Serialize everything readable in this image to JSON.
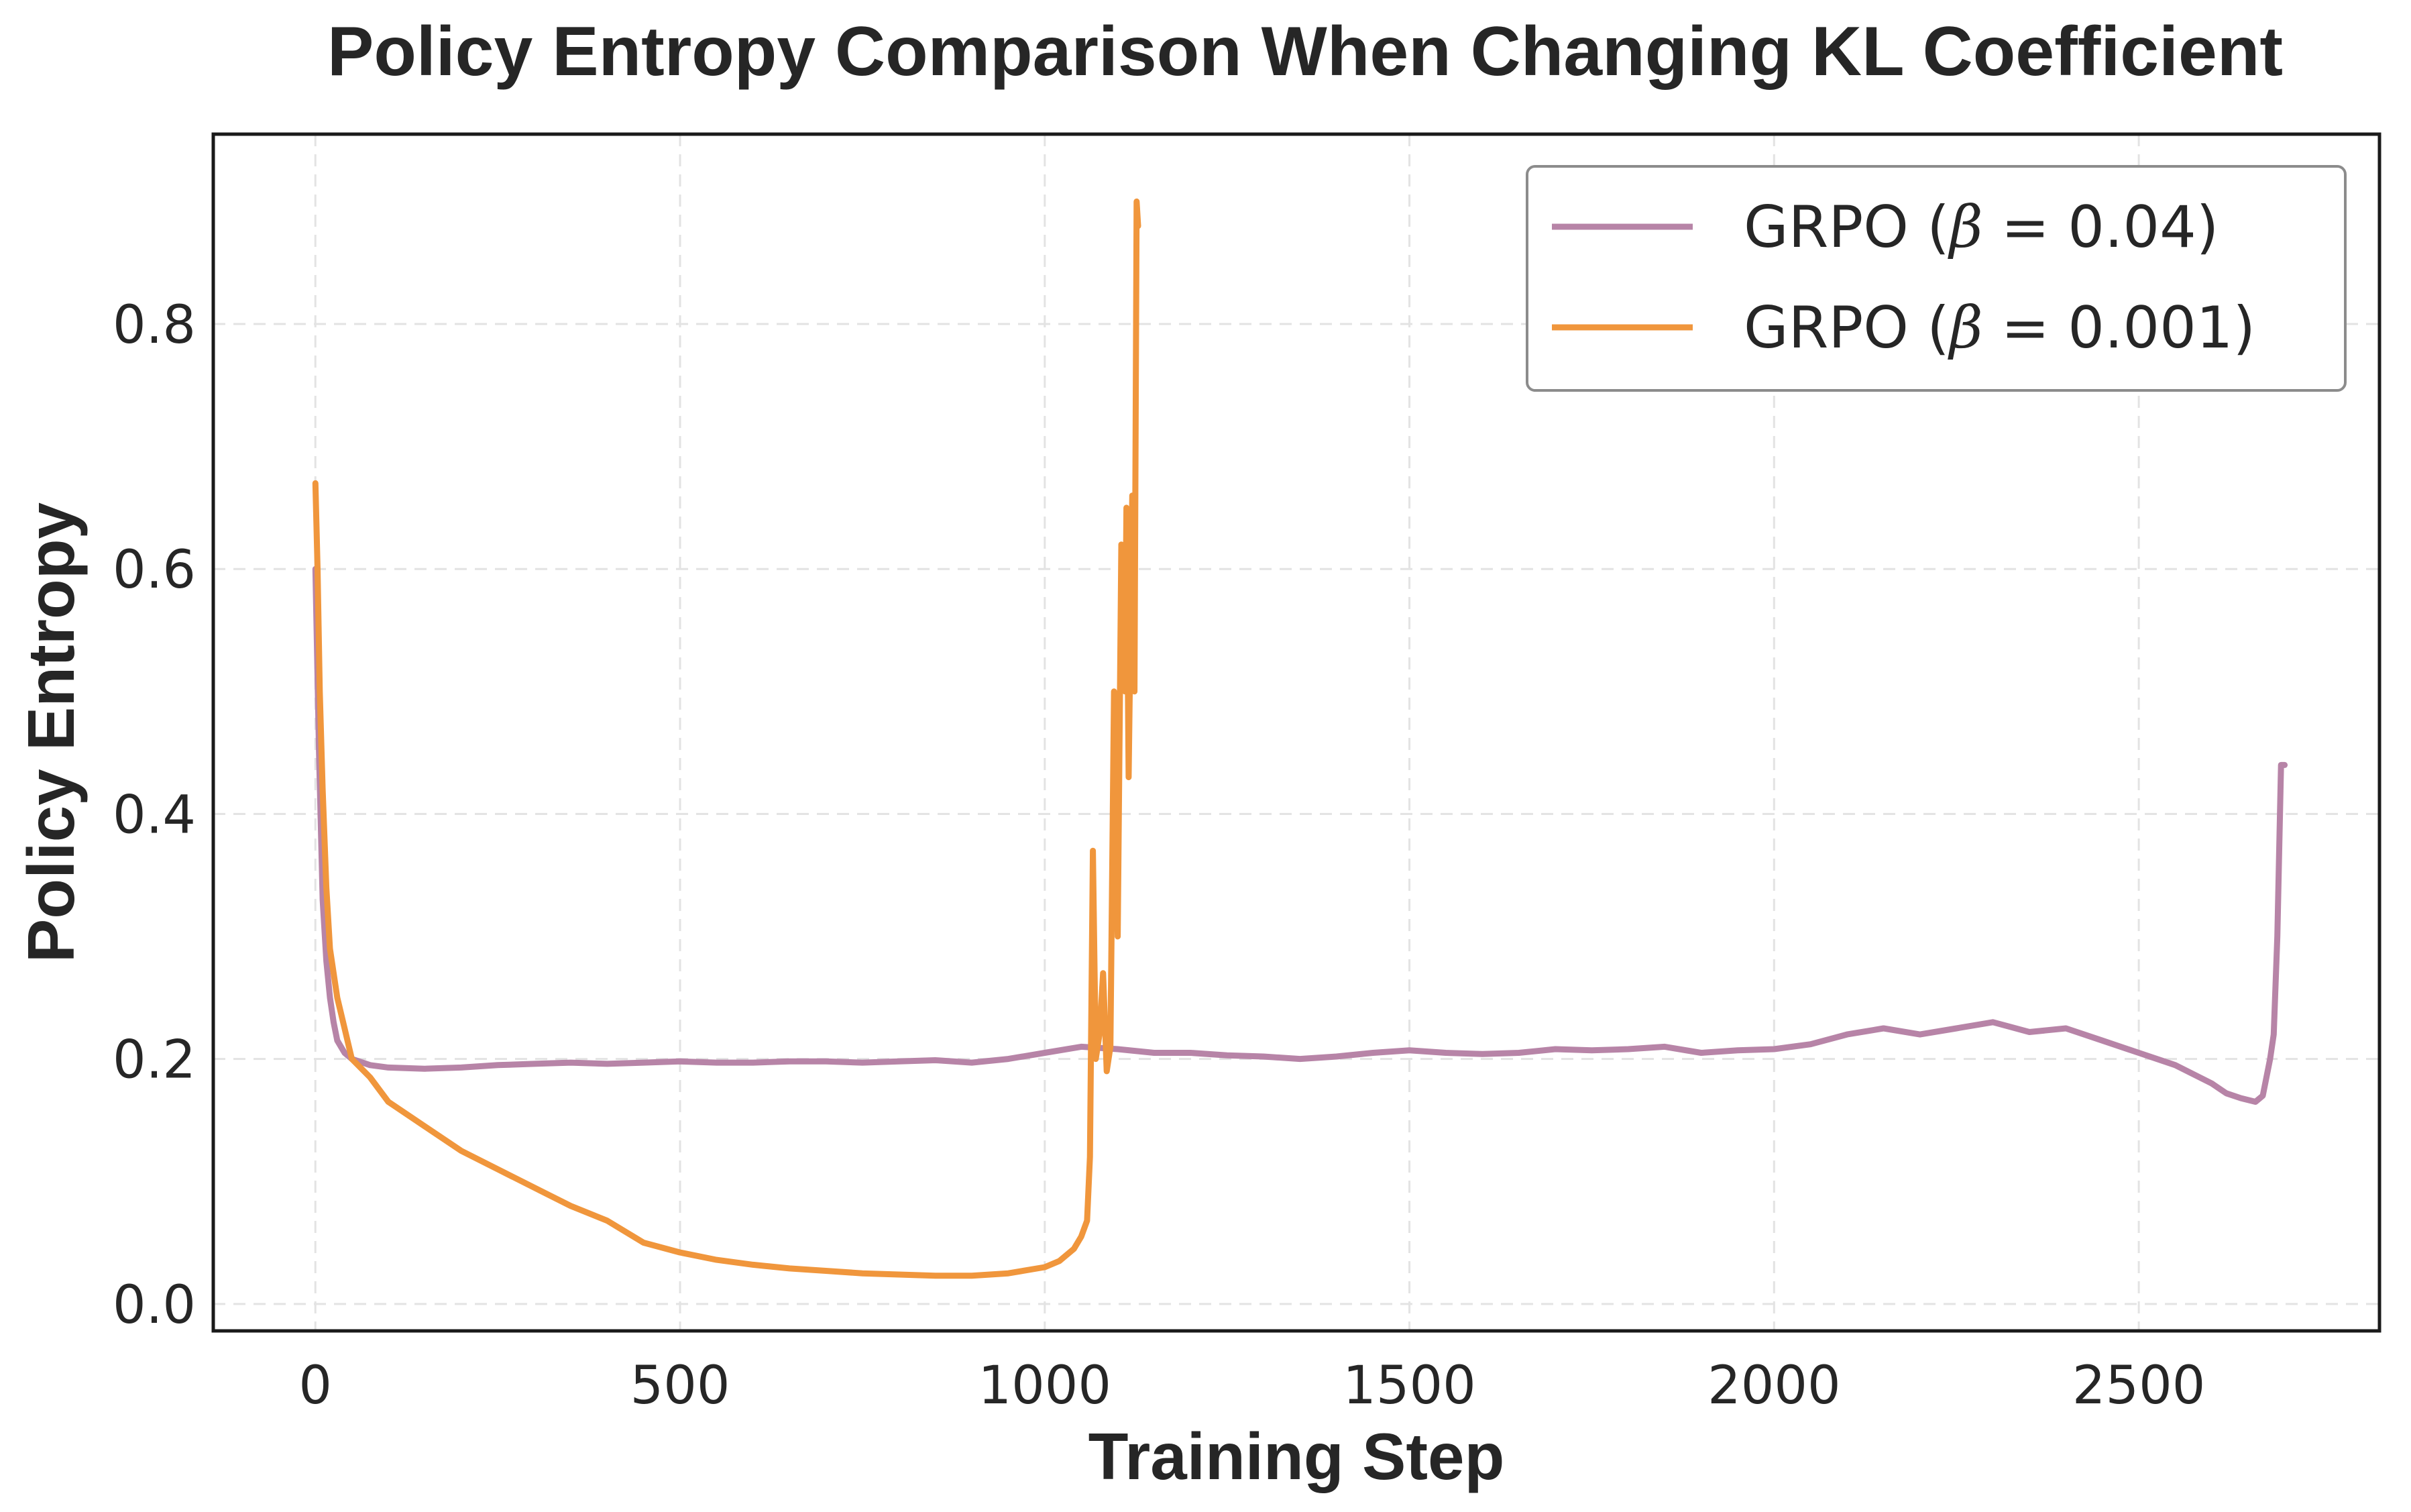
{
  "chart_data": {
    "type": "line",
    "title": "Policy Entropy Comparison When Changing KL Coefficient",
    "xlabel": "Training Step",
    "ylabel": "Policy Entropy",
    "xlim": [
      -140,
      2830
    ],
    "ylim": [
      -0.022,
      0.955
    ],
    "xticks": [
      0,
      500,
      1000,
      1500,
      2000,
      2500
    ],
    "xtick_labels": [
      "0",
      "500",
      "1000",
      "1500",
      "2000",
      "2500"
    ],
    "yticks": [
      0.0,
      0.2,
      0.4,
      0.6,
      0.8
    ],
    "ytick_labels": [
      "0.0",
      "0.2",
      "0.4",
      "0.6",
      "0.8"
    ],
    "grid": true,
    "legend_position": "top-right",
    "series": [
      {
        "name": "GRPO (β = 0.04)",
        "legend_prefix": "GRPO (",
        "legend_greek": "β",
        "legend_suffix": " = 0.04)",
        "color": "#b784a7",
        "x": [
          0,
          5,
          10,
          15,
          20,
          25,
          30,
          40,
          50,
          75,
          100,
          150,
          200,
          250,
          300,
          350,
          400,
          450,
          500,
          550,
          600,
          650,
          700,
          750,
          800,
          850,
          900,
          950,
          1000,
          1050,
          1100,
          1150,
          1200,
          1250,
          1300,
          1350,
          1400,
          1450,
          1500,
          1550,
          1600,
          1650,
          1700,
          1750,
          1800,
          1850,
          1900,
          1950,
          2000,
          2050,
          2100,
          2150,
          2200,
          2250,
          2300,
          2350,
          2400,
          2450,
          2500,
          2550,
          2600,
          2620,
          2640,
          2660,
          2670,
          2680,
          2685,
          2690,
          2695,
          2700
        ],
        "y": [
          0.6,
          0.45,
          0.33,
          0.28,
          0.25,
          0.23,
          0.215,
          0.205,
          0.2,
          0.195,
          0.193,
          0.192,
          0.193,
          0.195,
          0.196,
          0.197,
          0.196,
          0.197,
          0.198,
          0.197,
          0.197,
          0.198,
          0.198,
          0.197,
          0.198,
          0.199,
          0.197,
          0.2,
          0.205,
          0.21,
          0.208,
          0.205,
          0.205,
          0.203,
          0.202,
          0.2,
          0.202,
          0.205,
          0.207,
          0.205,
          0.204,
          0.205,
          0.208,
          0.207,
          0.208,
          0.21,
          0.205,
          0.207,
          0.208,
          0.212,
          0.22,
          0.225,
          0.22,
          0.225,
          0.23,
          0.222,
          0.225,
          0.215,
          0.205,
          0.195,
          0.18,
          0.172,
          0.168,
          0.165,
          0.17,
          0.2,
          0.22,
          0.3,
          0.44,
          0.44
        ]
      },
      {
        "name": "GRPO (β = 0.001)",
        "legend_prefix": "GRPO (",
        "legend_greek": "β",
        "legend_suffix": " = 0.001)",
        "color": "#f0963c",
        "x": [
          0,
          3,
          6,
          10,
          15,
          20,
          30,
          40,
          50,
          75,
          100,
          150,
          200,
          250,
          300,
          350,
          400,
          450,
          500,
          550,
          600,
          650,
          700,
          750,
          800,
          850,
          900,
          950,
          1000,
          1020,
          1040,
          1050,
          1058,
          1062,
          1066,
          1070,
          1075,
          1080,
          1085,
          1090,
          1095,
          1100,
          1105,
          1110,
          1112,
          1115,
          1120,
          1123,
          1126,
          1128
        ],
        "y": [
          0.67,
          0.6,
          0.5,
          0.42,
          0.34,
          0.29,
          0.25,
          0.225,
          0.2,
          0.185,
          0.165,
          0.145,
          0.125,
          0.11,
          0.095,
          0.08,
          0.068,
          0.05,
          0.042,
          0.036,
          0.032,
          0.029,
          0.027,
          0.025,
          0.024,
          0.023,
          0.023,
          0.025,
          0.03,
          0.035,
          0.045,
          0.055,
          0.068,
          0.12,
          0.37,
          0.2,
          0.22,
          0.27,
          0.19,
          0.21,
          0.5,
          0.3,
          0.62,
          0.5,
          0.65,
          0.43,
          0.66,
          0.5,
          0.9,
          0.88
        ]
      }
    ]
  }
}
